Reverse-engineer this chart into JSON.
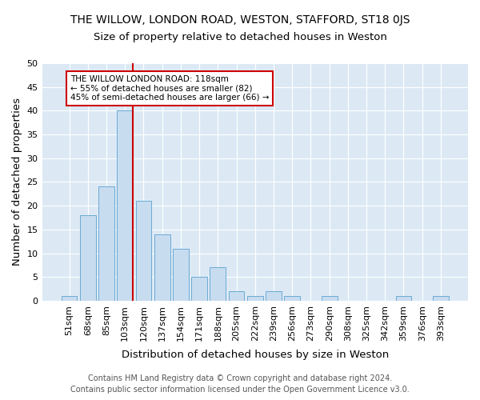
{
  "title": "THE WILLOW, LONDON ROAD, WESTON, STAFFORD, ST18 0JS",
  "subtitle": "Size of property relative to detached houses in Weston",
  "xlabel": "Distribution of detached houses by size in Weston",
  "ylabel": "Number of detached properties",
  "categories": [
    "51sqm",
    "68sqm",
    "85sqm",
    "103sqm",
    "120sqm",
    "137sqm",
    "154sqm",
    "171sqm",
    "188sqm",
    "205sqm",
    "222sqm",
    "239sqm",
    "256sqm",
    "273sqm",
    "290sqm",
    "308sqm",
    "325sqm",
    "342sqm",
    "359sqm",
    "376sqm",
    "393sqm"
  ],
  "values": [
    1,
    18,
    24,
    40,
    21,
    14,
    11,
    5,
    7,
    2,
    1,
    2,
    1,
    0,
    1,
    0,
    0,
    0,
    1,
    0,
    1
  ],
  "bar_color": "#c8dcf0",
  "bar_edge_color": "#6aaad4",
  "vline_color": "#cc0000",
  "ylim": [
    0,
    50
  ],
  "yticks": [
    0,
    5,
    10,
    15,
    20,
    25,
    30,
    35,
    40,
    45,
    50
  ],
  "annotation_title": "THE WILLOW LONDON ROAD: 118sqm",
  "annotation_line1": "← 55% of detached houses are smaller (82)",
  "annotation_line2": "45% of semi-detached houses are larger (66) →",
  "annotation_box_color": "#ffffff",
  "annotation_box_edge": "#cc0000",
  "footer_line1": "Contains HM Land Registry data © Crown copyright and database right 2024.",
  "footer_line2": "Contains public sector information licensed under the Open Government Licence v3.0.",
  "plot_bg_color": "#dce9f5",
  "grid_color": "#ffffff",
  "title_fontsize": 10,
  "subtitle_fontsize": 9.5,
  "axis_label_fontsize": 9.5,
  "tick_fontsize": 8,
  "annotation_fontsize": 7.5,
  "footer_fontsize": 7
}
